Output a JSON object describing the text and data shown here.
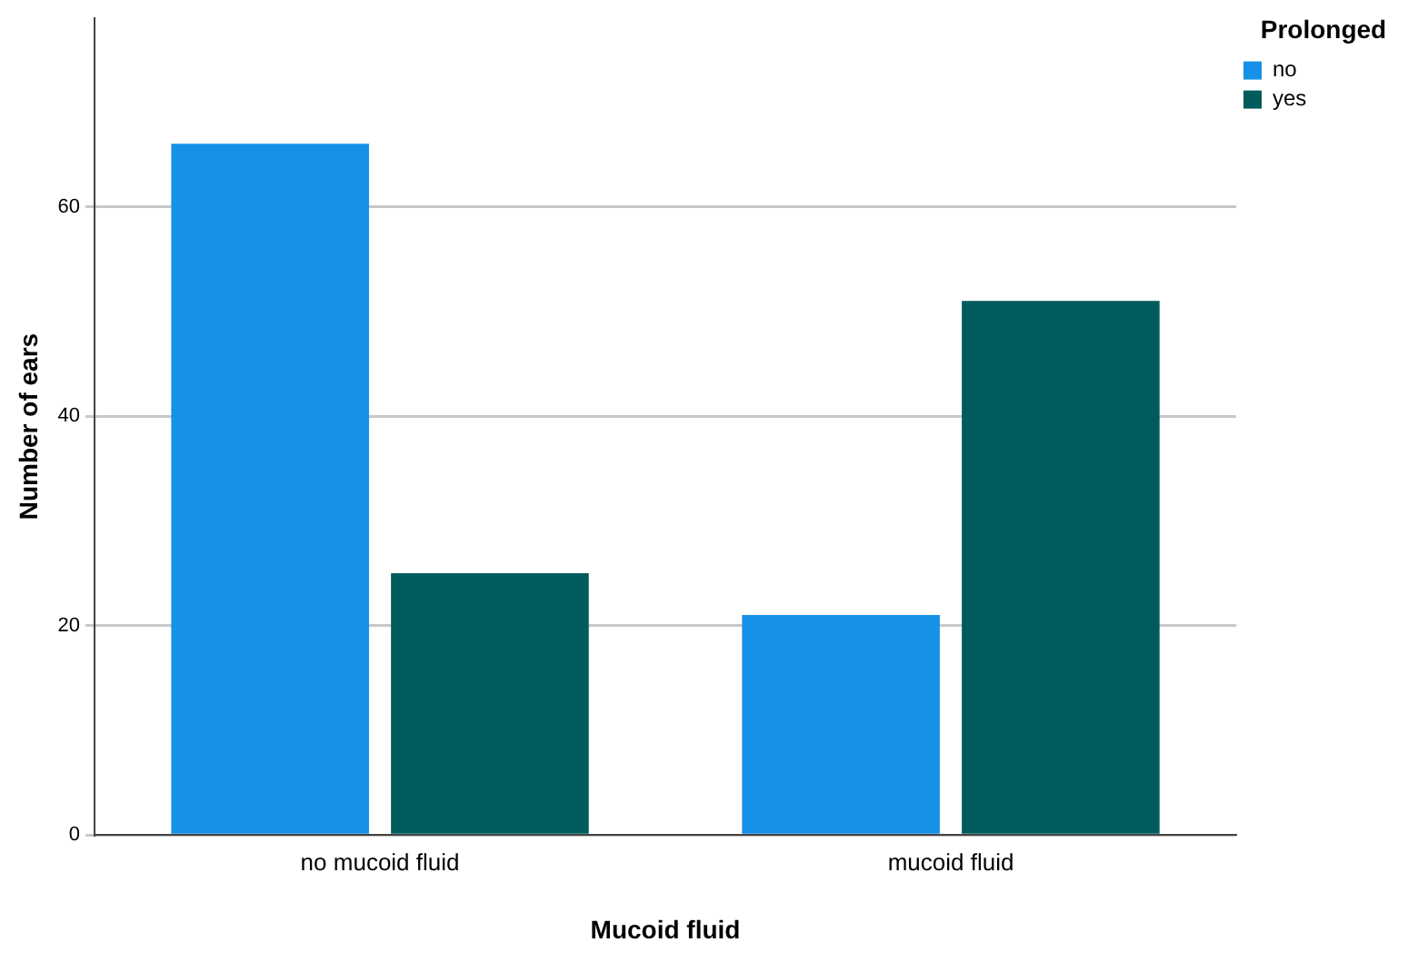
{
  "chart_data": {
    "type": "bar",
    "xlabel": "Mucoid fluid",
    "ylabel": "Number of ears",
    "legend_title": "Prolonged",
    "categories": [
      "no mucoid fluid",
      "mucoid fluid"
    ],
    "series": [
      {
        "name": "no",
        "color": "#1790e8",
        "values": [
          66,
          21
        ]
      },
      {
        "name": "yes",
        "color": "#005c5c",
        "values": [
          25,
          51
        ]
      }
    ],
    "ylim": [
      0,
      78
    ],
    "yticks": [
      0,
      20,
      40,
      60
    ],
    "grid": "y",
    "legend": "top right"
  }
}
